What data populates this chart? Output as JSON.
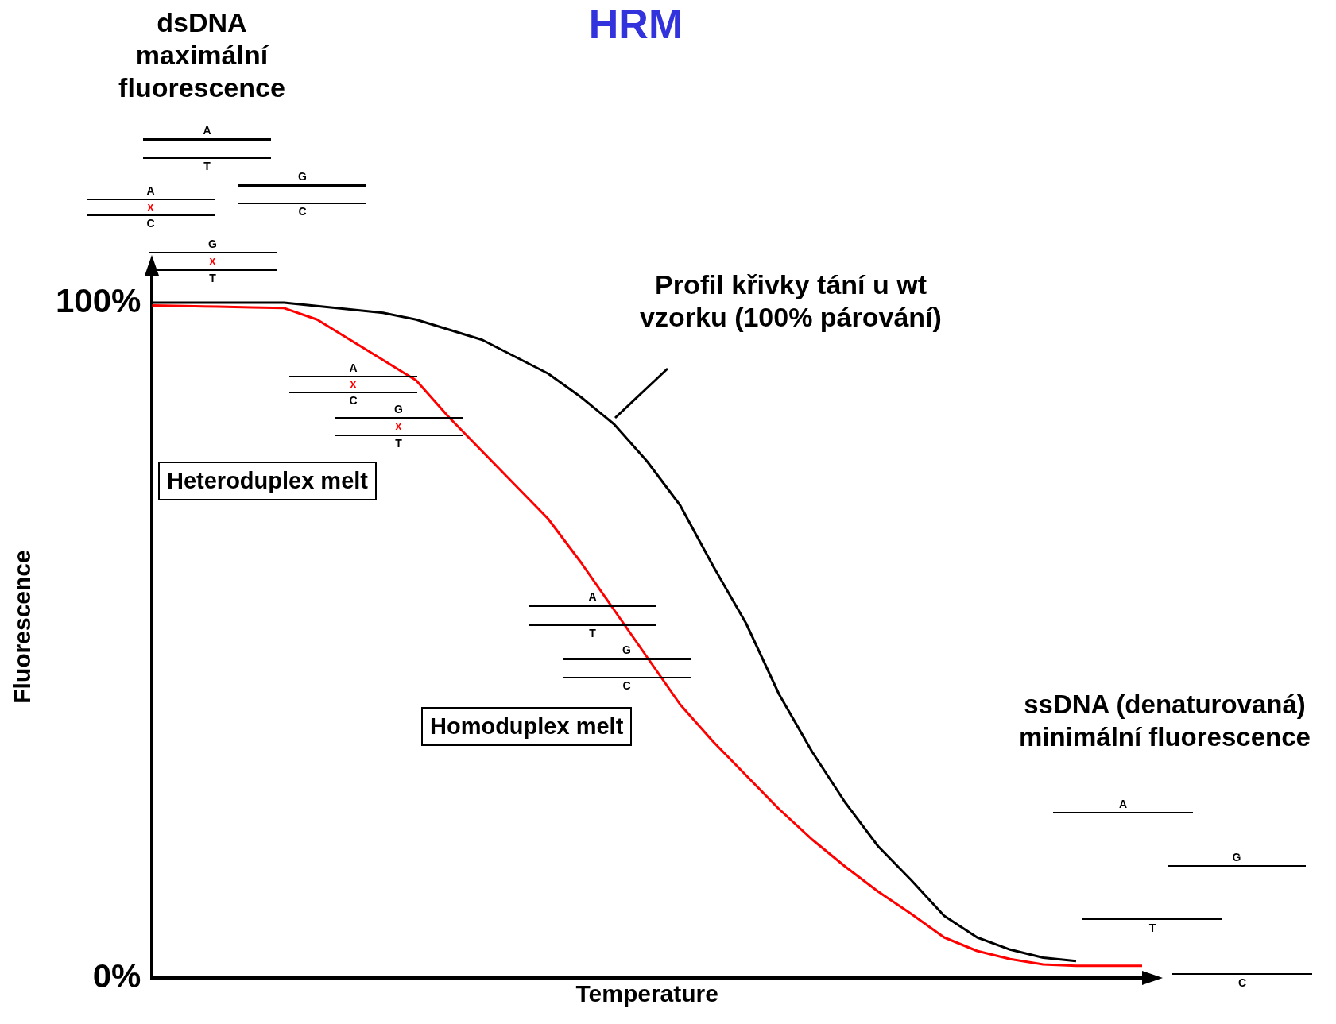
{
  "chart_data": {
    "type": "line",
    "title": "HRM",
    "xlabel": "Temperature",
    "ylabel": "Fluorescence",
    "categories": [
      null,
      null,
      null,
      null,
      null,
      null,
      null,
      null,
      null,
      null,
      null,
      null,
      null,
      null,
      null,
      null,
      null,
      null,
      null,
      null,
      null,
      null,
      null,
      null,
      null,
      null,
      null,
      null,
      null,
      null,
      null
    ],
    "series": [
      {
        "color": "#000000",
        "values": [
          100,
          100,
          100,
          100,
          100,
          99.5,
          99,
          98.5,
          97.5,
          96,
          94.5,
          92,
          89.5,
          86,
          82,
          76.5,
          70,
          61,
          52.5,
          42,
          33.5,
          26,
          19.5,
          14.5,
          9.2,
          6,
          4.2,
          3,
          2.5,
          null,
          null
        ]
      },
      {
        "color": "#ff0000",
        "values": [
          99.6,
          99.5,
          99.4,
          99.3,
          99.2,
          97.5,
          94.5,
          91.5,
          88.5,
          83,
          78,
          73,
          68,
          61.5,
          54.5,
          47.5,
          40.5,
          35,
          30,
          25,
          20.5,
          16.5,
          12.8,
          9.5,
          6,
          4,
          2.8,
          2,
          1.8,
          1.8,
          1.8
        ]
      }
    ],
    "ylim": [
      0,
      104
    ],
    "yticks": [
      {
        "value": 0,
        "label": "0%"
      },
      {
        "value": 100,
        "label": "100%"
      }
    ],
    "tick_labels": "y",
    "grid": false,
    "legend": false,
    "marker": "none",
    "annotations": [
      "dsDNA maximální fluorescence",
      "Profil křivky tání u wt vzorku (100% párování)",
      "Heteroduplex melt",
      "Homoduplex melt",
      "ssDNA (denaturovaná) minimální fluorescence",
      "A",
      "T",
      "A",
      "x",
      "C",
      "G",
      "C",
      "G",
      "x",
      "T",
      "A",
      "x",
      "C",
      "G",
      "x",
      "T",
      "A",
      "T",
      "G",
      "C",
      "A",
      "G",
      "T",
      "C"
    ]
  }
}
